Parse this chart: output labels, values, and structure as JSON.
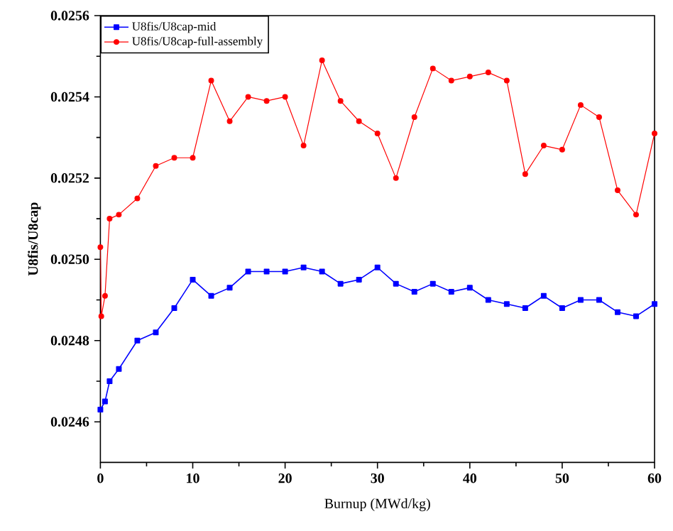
{
  "chart_data": {
    "type": "line",
    "xlabel": "Burnup (MWd/kg)",
    "ylabel": "U8fis/U8cap",
    "xlim": [
      0,
      60
    ],
    "xticks": [
      0,
      10,
      20,
      30,
      40,
      50,
      60
    ],
    "ylim": [
      0.0245,
      0.0256
    ],
    "yticks": [
      0.0246,
      0.0248,
      {
        "value": 0.025,
        "label": "0.0250"
      },
      0.0252,
      0.0254,
      0.0256
    ],
    "legend": "top left",
    "grid": false,
    "line_style": "solid",
    "series": [
      {
        "name": "U8fis/U8cap-mid",
        "color": "#0000ff",
        "marker": "square",
        "x": [
          0,
          0.5,
          1,
          2,
          4,
          6,
          8,
          10,
          12,
          14,
          16,
          18,
          20,
          22,
          24,
          26,
          28,
          30,
          32,
          34,
          36,
          38,
          40,
          42,
          44,
          46,
          48,
          50,
          52,
          54,
          56,
          58,
          60
        ],
        "values": [
          0.02463,
          0.02465,
          0.0247,
          0.02473,
          0.0248,
          0.02482,
          0.02488,
          0.02495,
          0.02491,
          0.02493,
          0.02497,
          0.02497,
          0.02497,
          0.02498,
          0.02497,
          0.02494,
          0.02495,
          0.02498,
          0.02494,
          0.02492,
          0.02494,
          0.02492,
          0.02493,
          0.0249,
          0.02489,
          0.02488,
          0.02491,
          0.02488,
          0.0249,
          0.0249,
          0.02487,
          0.02486,
          0.02489
        ]
      },
      {
        "name": "U8fis/U8cap-full-assembly",
        "color": "#ff0000",
        "marker": "circle",
        "x": [
          0,
          0.1,
          0.5,
          1,
          2,
          4,
          6,
          8,
          10,
          12,
          14,
          16,
          18,
          20,
          22,
          24,
          26,
          28,
          30,
          32,
          34,
          36,
          38,
          40,
          42,
          44,
          46,
          48,
          50,
          52,
          54,
          56,
          58,
          60
        ],
        "values": [
          0.02503,
          0.02486,
          0.02491,
          0.0251,
          0.02511,
          0.02515,
          0.02523,
          0.02525,
          0.02525,
          0.02544,
          0.02534,
          0.0254,
          0.02539,
          0.0254,
          0.02528,
          0.02549,
          0.02539,
          0.02534,
          0.02531,
          0.0252,
          0.02535,
          0.02547,
          0.02544,
          0.02545,
          0.02546,
          0.02544,
          0.02521,
          0.02528,
          0.02527,
          0.02538,
          0.02535,
          0.02517,
          0.02511,
          0.02531
        ]
      }
    ]
  }
}
